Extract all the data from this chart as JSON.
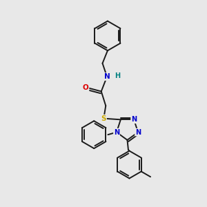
{
  "bg_color": "#e8e8e8",
  "bond_color": "#1a1a1a",
  "atom_colors": {
    "N": "#0000cc",
    "O": "#dd0000",
    "S": "#ccaa00",
    "H": "#008080",
    "C": "#1a1a1a"
  },
  "figsize": [
    3.0,
    3.0
  ],
  "dpi": 100,
  "xlim": [
    0,
    10
  ],
  "ylim": [
    0,
    10
  ]
}
